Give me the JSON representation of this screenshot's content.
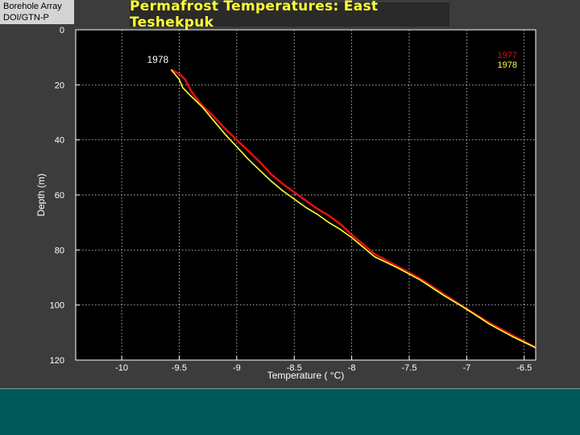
{
  "header": {
    "lines": [
      "Borehole Array",
      "DOI/GTN-P"
    ]
  },
  "title": "Permafrost Temperatures:  East Teshekpuk",
  "colors": {
    "background": "#3c3c3c",
    "plot_background": "#000000",
    "title_text": "#ffff33",
    "series_1977": "#dd1111",
    "series_1978": "#ffff33",
    "bottom_band": "#005a5a"
  },
  "chart_data": {
    "type": "line",
    "xlabel": "Temperature ( °C)",
    "ylabel": "Depth (m)",
    "xlim": [
      -10.4,
      -6.4
    ],
    "ylim": [
      0,
      120
    ],
    "y_reversed": true,
    "grid": true,
    "x_ticks": [
      -10,
      -9.5,
      -9,
      -8.5,
      -8,
      -7.5,
      -7,
      -6.5
    ],
    "x_tick_labels": [
      "-10",
      "-9.5",
      "-9",
      "-8.5",
      "-8",
      "-7.5",
      "-7",
      "-6.5"
    ],
    "y_ticks": [
      0,
      20,
      40,
      60,
      80,
      100,
      120
    ],
    "y_tick_labels": [
      "0",
      "20",
      "40",
      "60",
      "80",
      "100",
      "120"
    ],
    "legend_placement": "top-right",
    "annotation": "1978",
    "series": [
      {
        "name": "1977",
        "color": "#dd1111",
        "points": [
          [
            -9.57,
            14.5
          ],
          [
            -9.5,
            16
          ],
          [
            -9.45,
            18
          ],
          [
            -9.4,
            22
          ],
          [
            -9.35,
            25
          ],
          [
            -9.3,
            27.5
          ],
          [
            -9.2,
            31.5
          ],
          [
            -9.1,
            36
          ],
          [
            -9.0,
            40
          ],
          [
            -8.9,
            44
          ],
          [
            -8.8,
            48
          ],
          [
            -8.7,
            52.5
          ],
          [
            -8.6,
            56
          ],
          [
            -8.5,
            59
          ],
          [
            -8.4,
            62
          ],
          [
            -8.3,
            65
          ],
          [
            -8.2,
            67.5
          ],
          [
            -8.1,
            70.5
          ],
          [
            -8.0,
            74.5
          ],
          [
            -7.9,
            78
          ],
          [
            -7.8,
            81.5
          ],
          [
            -7.6,
            86
          ],
          [
            -7.4,
            90.5
          ],
          [
            -7.2,
            96
          ],
          [
            -7.0,
            101.5
          ],
          [
            -6.8,
            106.5
          ],
          [
            -6.6,
            111
          ],
          [
            -6.4,
            115.5
          ]
        ]
      },
      {
        "name": "1978",
        "color": "#ffff33",
        "points": [
          [
            -9.57,
            14.5
          ],
          [
            -9.5,
            18
          ],
          [
            -9.47,
            21
          ],
          [
            -9.4,
            24
          ],
          [
            -9.3,
            28
          ],
          [
            -9.2,
            33
          ],
          [
            -9.1,
            38
          ],
          [
            -9.0,
            42.5
          ],
          [
            -8.9,
            47
          ],
          [
            -8.8,
            51
          ],
          [
            -8.7,
            55
          ],
          [
            -8.6,
            58.5
          ],
          [
            -8.5,
            61.5
          ],
          [
            -8.4,
            64.5
          ],
          [
            -8.3,
            67
          ],
          [
            -8.2,
            70
          ],
          [
            -8.1,
            72.5
          ],
          [
            -8.0,
            75.5
          ],
          [
            -7.9,
            79
          ],
          [
            -7.8,
            82.5
          ],
          [
            -7.6,
            86.5
          ],
          [
            -7.4,
            91
          ],
          [
            -7.2,
            96.5
          ],
          [
            -7.0,
            101.5
          ],
          [
            -6.8,
            107
          ],
          [
            -6.6,
            111.5
          ],
          [
            -6.4,
            115.5
          ]
        ]
      }
    ]
  }
}
